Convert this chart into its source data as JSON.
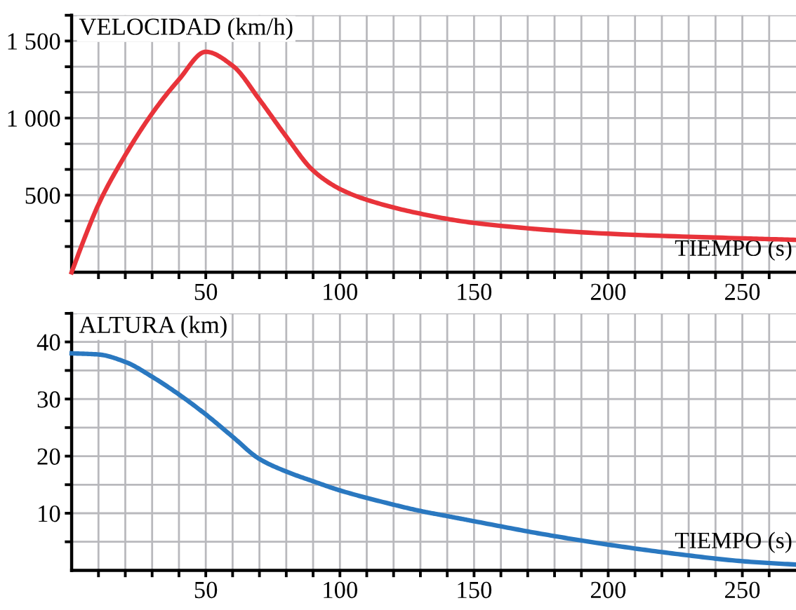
{
  "chart_data": [
    {
      "type": "line",
      "xlabel": "TIEMPO (s)",
      "ylabel": "VELOCIDAD (km/h)",
      "xlim": [
        0,
        270
      ],
      "ylim": [
        0,
        1667
      ],
      "xticks": [
        {
          "value": 10,
          "label": null
        },
        {
          "value": 20,
          "label": null
        },
        {
          "value": 30,
          "label": null
        },
        {
          "value": 40,
          "label": null
        },
        50,
        {
          "value": 60,
          "label": null
        },
        {
          "value": 70,
          "label": null
        },
        {
          "value": 80,
          "label": null
        },
        {
          "value": 90,
          "label": null
        },
        100,
        {
          "value": 110,
          "label": null
        },
        {
          "value": 120,
          "label": null
        },
        {
          "value": 130,
          "label": null
        },
        {
          "value": 140,
          "label": null
        },
        150,
        {
          "value": 160,
          "label": null
        },
        {
          "value": 170,
          "label": null
        },
        {
          "value": 180,
          "label": null
        },
        {
          "value": 190,
          "label": null
        },
        200,
        {
          "value": 210,
          "label": null
        },
        {
          "value": 220,
          "label": null
        },
        {
          "value": 230,
          "label": null
        },
        {
          "value": 240,
          "label": null
        },
        250,
        {
          "value": 260,
          "label": null
        }
      ],
      "yticks": [
        {
          "value": 167,
          "label": null
        },
        {
          "value": 333,
          "label": null
        },
        500,
        {
          "value": 667,
          "label": null
        },
        {
          "value": 833,
          "label": null
        },
        {
          "value": 1000,
          "label": "1 000"
        },
        {
          "value": 1167,
          "label": null
        },
        {
          "value": 1333,
          "label": null
        },
        {
          "value": 1500,
          "label": "1 500"
        },
        {
          "value": 1667,
          "label": null
        }
      ],
      "grid": true,
      "marker": "none",
      "line_style": "solid",
      "x": [
        0,
        5,
        10,
        20,
        30,
        40,
        50,
        60,
        70,
        80,
        90,
        100,
        110,
        130,
        150,
        200,
        250,
        270
      ],
      "series": [
        {
          "color": "#e8333a",
          "values": [
            0,
            230,
            440,
            760,
            1030,
            1250,
            1430,
            1340,
            1120,
            880,
            660,
            540,
            470,
            380,
            320,
            250,
            220,
            210
          ]
        }
      ]
    },
    {
      "type": "line",
      "xlabel": "TIEMPO (s)",
      "ylabel": "ALTURA (km)",
      "xlim": [
        0,
        270
      ],
      "ylim": [
        0,
        45
      ],
      "xticks": [
        {
          "value": 10,
          "label": null
        },
        {
          "value": 20,
          "label": null
        },
        {
          "value": 30,
          "label": null
        },
        {
          "value": 40,
          "label": null
        },
        50,
        {
          "value": 60,
          "label": null
        },
        {
          "value": 70,
          "label": null
        },
        {
          "value": 80,
          "label": null
        },
        {
          "value": 90,
          "label": null
        },
        100,
        {
          "value": 110,
          "label": null
        },
        {
          "value": 120,
          "label": null
        },
        {
          "value": 130,
          "label": null
        },
        {
          "value": 140,
          "label": null
        },
        150,
        {
          "value": 160,
          "label": null
        },
        {
          "value": 170,
          "label": null
        },
        {
          "value": 180,
          "label": null
        },
        {
          "value": 190,
          "label": null
        },
        200,
        {
          "value": 210,
          "label": null
        },
        {
          "value": 220,
          "label": null
        },
        {
          "value": 230,
          "label": null
        },
        {
          "value": 240,
          "label": null
        },
        250,
        {
          "value": 260,
          "label": null
        }
      ],
      "yticks": [
        {
          "value": 5,
          "label": null
        },
        10,
        {
          "value": 15,
          "label": null
        },
        20,
        {
          "value": 25,
          "label": null
        },
        30,
        {
          "value": 35,
          "label": null
        },
        40,
        {
          "value": 45,
          "label": null
        }
      ],
      "grid": true,
      "marker": "none",
      "line_style": "solid",
      "x": [
        0,
        10,
        20,
        30,
        40,
        50,
        60,
        70,
        80,
        90,
        100,
        120,
        130,
        140,
        150,
        175,
        200,
        225,
        250,
        270
      ],
      "series": [
        {
          "color": "#2a78c0",
          "values": [
            38.0,
            37.8,
            36.5,
            33.9,
            30.8,
            27.3,
            23.4,
            19.5,
            17.3,
            15.6,
            14.0,
            11.5,
            10.4,
            9.5,
            8.6,
            6.4,
            4.5,
            2.9,
            1.6,
            1.0
          ]
        }
      ]
    }
  ]
}
